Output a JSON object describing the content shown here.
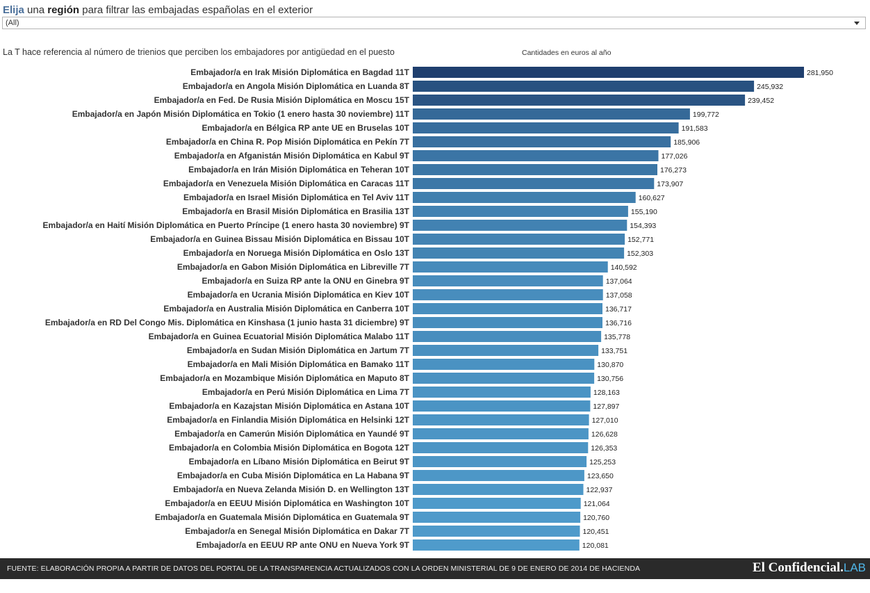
{
  "header": {
    "prompt_part1": "Elija",
    "prompt_part2": " una ",
    "prompt_part3": "región",
    "prompt_part4": " para filtrar las embajadas españolas en el exterior",
    "filter_value": "(All)"
  },
  "note": "La T hace referencia al número de trienios que perciben los embajadores por antigüedad en el puesto",
  "footer": {
    "source": "FUENTE: ELABORACIÓN PROPIA A PARTIR DE DATOS DEL PORTAL DE LA TRANSPARENCIA ACTUALIZADOS CON LA ORDEN MINISTERIAL DE 9 DE ENERO DE 2014 DE HACIENDA",
    "logo_main": "El Confidencial.",
    "logo_lab": "LAB"
  },
  "colors": {
    "bar_dark": "#1f3f6e",
    "bar_light": "#4f9bcb",
    "footer_bg": "#2a2a2a"
  },
  "chart_data": {
    "type": "bar",
    "orientation": "horizontal",
    "title": "Cantidades en euros al año",
    "xlim": [
      0,
      290000
    ],
    "grid": false,
    "categories": [
      "Embajador/a en Irak Misión Diplomática en Bagdad 11T",
      "Embajador/a en Angola Misión Diplomática en Luanda 8T",
      "Embajador/a en Fed. De Rusia Misión Diplomática en Moscu 15T",
      "Embajador/a en Japón Misión Diplomática en Tokio (1 enero hasta 30 noviembre) 11T",
      "Embajador/a en Bélgica RP ante UE en Bruselas 10T",
      "Embajador/a en China R. Pop Misión Diplomática en Pekín 7T",
      "Embajador/a en Afganistán Misión Diplomática en Kabul 9T",
      "Embajador/a en Irán Misión Diplomática en Teheran 10T",
      "Embajador/a en Venezuela Misión Diplomática en Caracas 11T",
      "Embajador/a en Israel Misión Diplomática en Tel Aviv 11T",
      "Embajador/a en Brasil Misión Diplomática en Brasilia 13T",
      "Embajador/a en Haití Misión Diplomática en Puerto Príncipe (1 enero hasta 30 noviembre) 9T",
      "Embajador/a en Guinea Bissau Misión Diplomática en Bissau 10T",
      "Embajador/a en Noruega Misión Diplomática en Oslo 13T",
      "Embajador/a en Gabon Misión Diplomática en Libreville 7T",
      "Embajador/a en Suiza RP ante la ONU en Ginebra 9T",
      "Embajador/a en Ucrania Misión Diplomática en Kiev 10T",
      "Embajador/a en Australia Misión Diplomática en Canberra 10T",
      "Embajador/a en RD Del Congo Mis. Diplomática en Kinshasa (1 junio hasta 31 diciembre) 9T",
      "Embajador/a en Guinea Ecuatorial Misión Diplomática Malabo 11T",
      "Embajador/a en Sudan Misión Diplomática en Jartum 7T",
      "Embajador/a en Mali Misión Diplomática en Bamako 11T",
      "Embajador/a en Mozambique Misión Diplomática en Maputo 8T",
      "Embajador/a en Perú Misión Diplomática en Lima 7T",
      "Embajador/a en Kazajstan Misión Diplomática en Astana 10T",
      "Embajador/a en Finlandia Misión Diplomática en Helsinki 12T",
      "Embajador/a en Camerún Misión Diplomática en Yaundé 9T",
      "Embajador/a en Colombia Misión Diplomática en Bogota 12T",
      "Embajador/a en Líbano Misión Diplomática en Beirut 9T",
      "Embajador/a en Cuba Misión Diplomática en La Habana 9T",
      "Embajador/a en Nueva Zelanda Misión D. en Wellington 13T",
      "Embajador/a en EEUU Misión Diplomática en Washington 10T",
      "Embajador/a en Guatemala Misión Diplomática en Guatemala 9T",
      "Embajador/a en Senegal Misión Diplomática en Dakar 7T",
      "Embajador/a en EEUU RP ante ONU en Nueva York 9T"
    ],
    "values": [
      281950,
      245932,
      239452,
      199772,
      191583,
      185906,
      177026,
      176273,
      173907,
      160627,
      155190,
      154393,
      152771,
      152303,
      140592,
      137064,
      137058,
      136717,
      136716,
      135778,
      133751,
      130870,
      130756,
      128163,
      127897,
      127010,
      126628,
      126353,
      125253,
      123650,
      122937,
      121064,
      120760,
      120451,
      120081
    ],
    "value_labels": [
      "281,950",
      "245,932",
      "239,452",
      "199,772",
      "191,583",
      "185,906",
      "177,026",
      "176,273",
      "173,907",
      "160,627",
      "155,190",
      "154,393",
      "152,771",
      "152,303",
      "140,592",
      "137,064",
      "137,058",
      "136,717",
      "136,716",
      "135,778",
      "133,751",
      "130,870",
      "130,756",
      "128,163",
      "127,897",
      "127,010",
      "126,628",
      "126,353",
      "125,253",
      "123,650",
      "122,937",
      "121,064",
      "120,760",
      "120,451",
      "120,081"
    ]
  }
}
